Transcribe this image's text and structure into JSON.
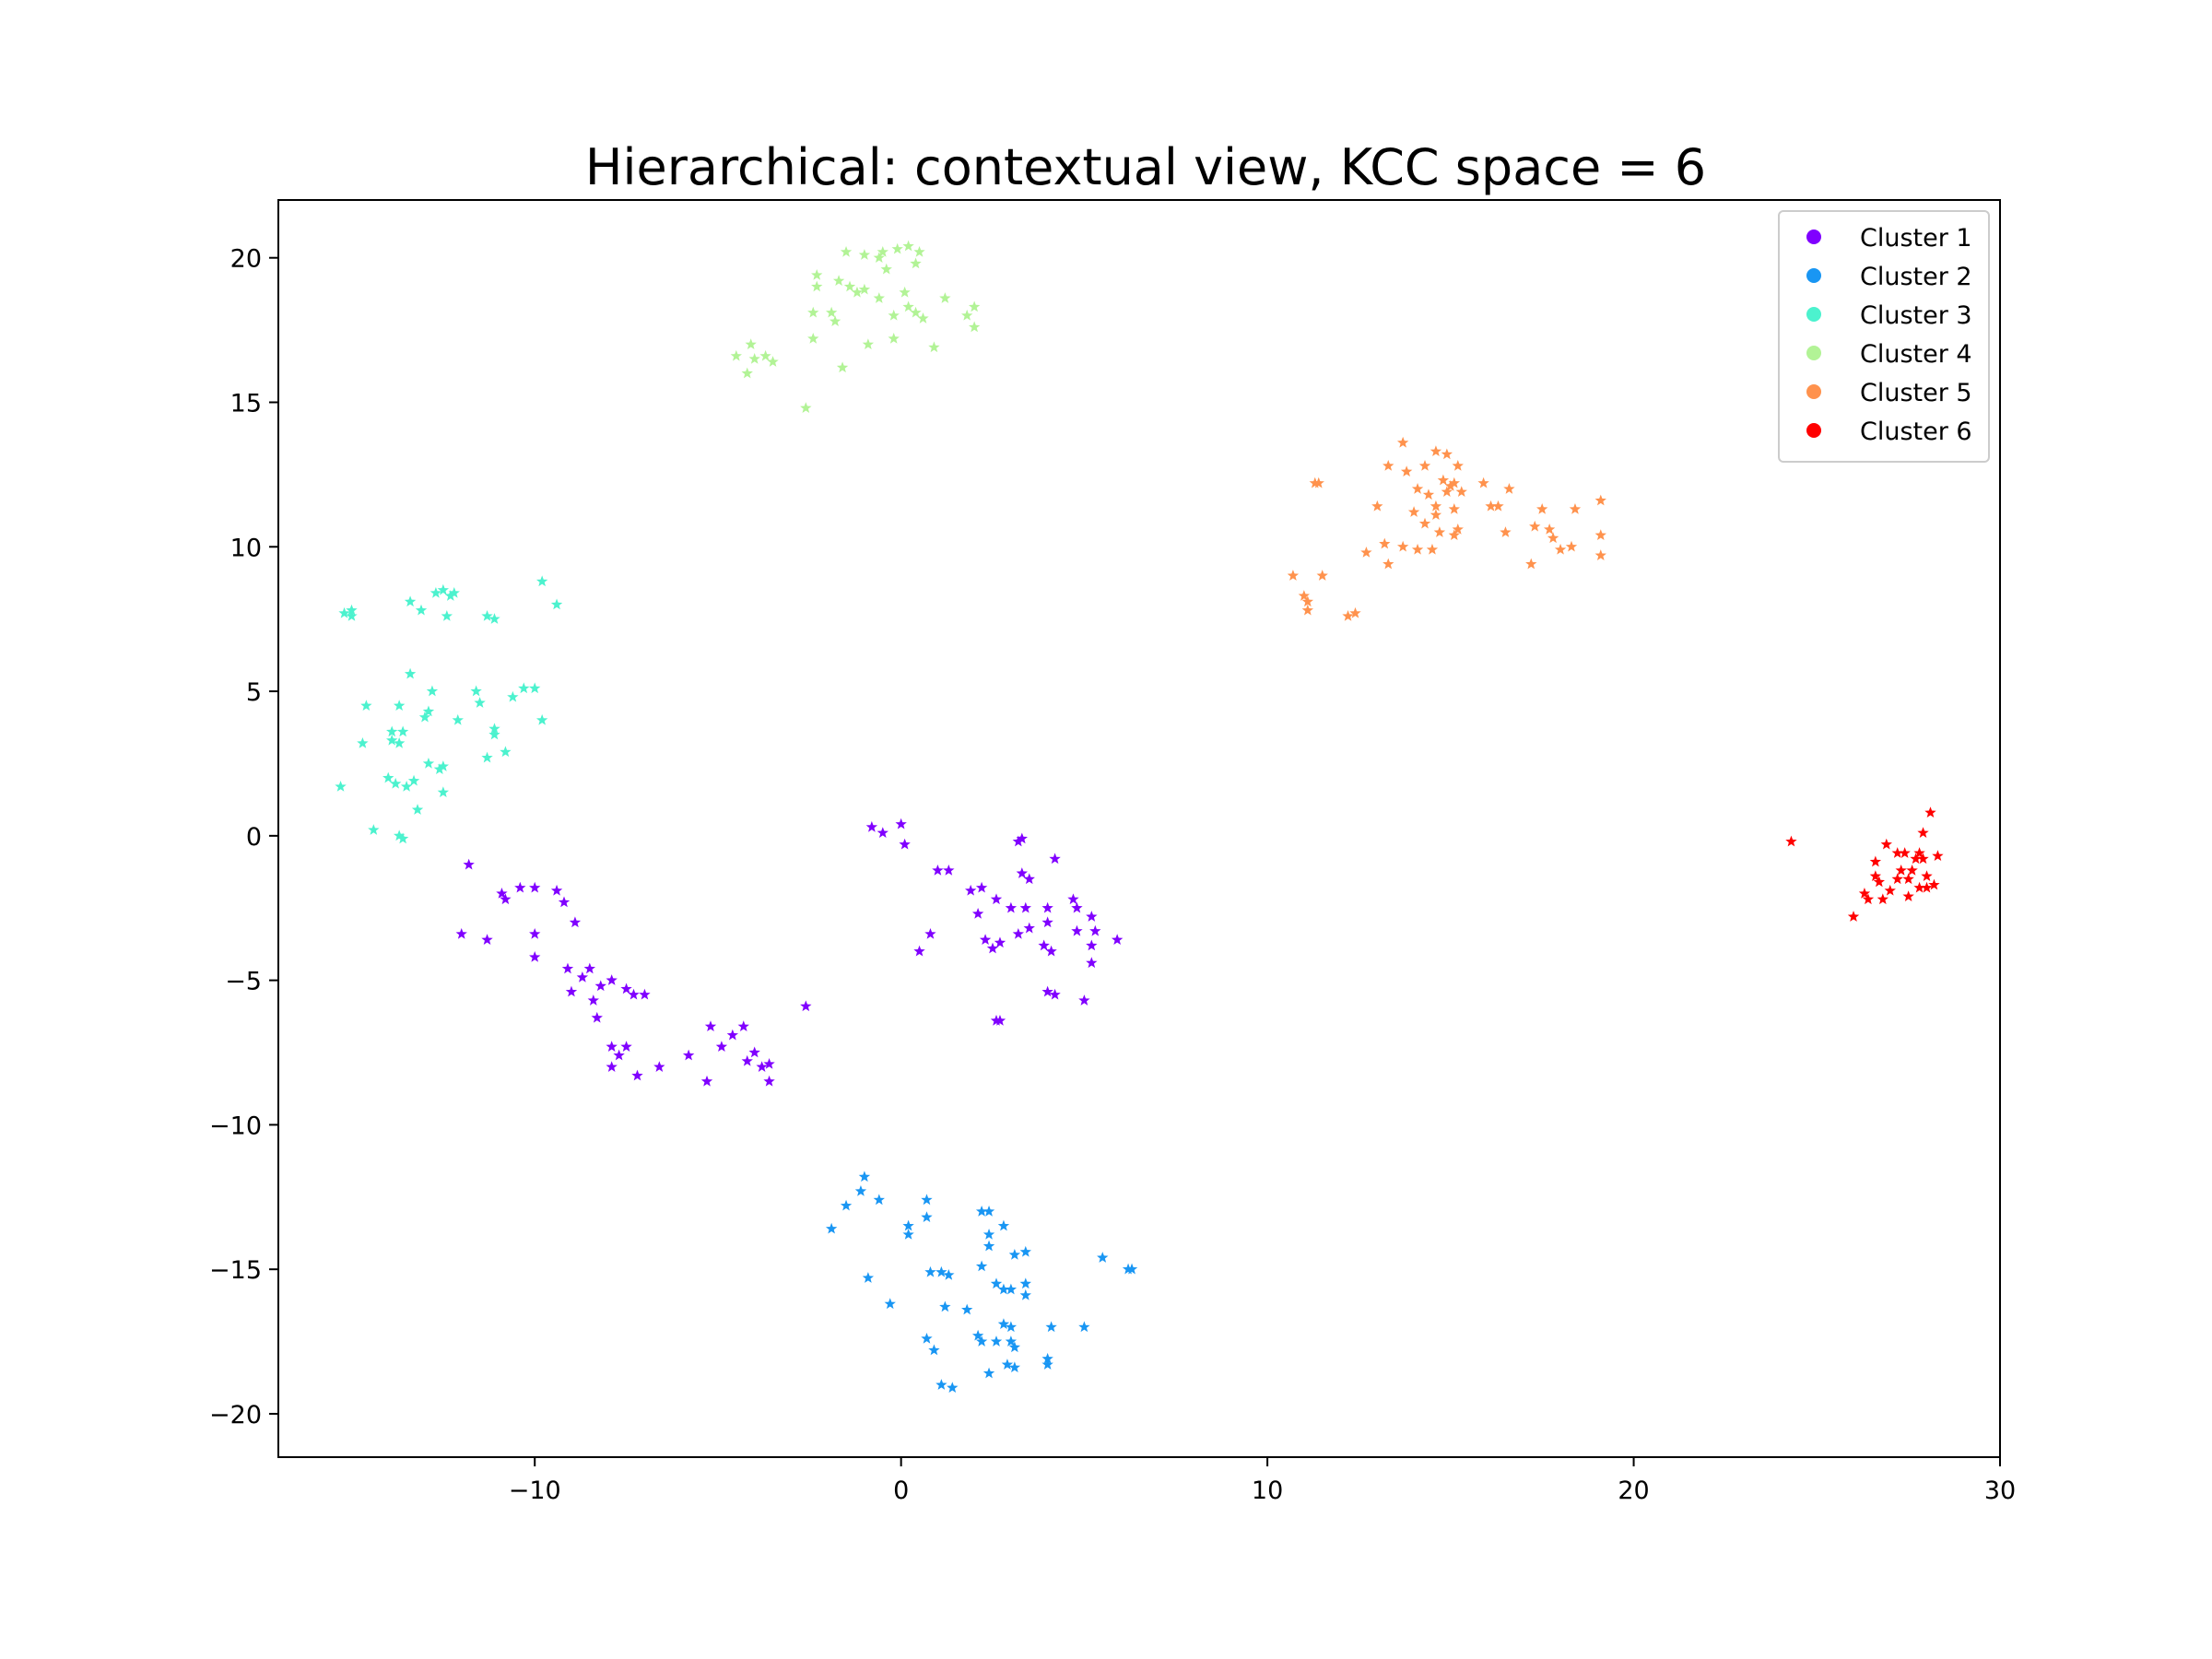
{
  "chart_data": {
    "type": "scatter",
    "title": "Hierarchical: contextual view, KCC space = 6",
    "xlabel": "",
    "ylabel": "",
    "xlim": [
      -17.0,
      30.0
    ],
    "ylim": [
      -21.5,
      22.0
    ],
    "xticks": [
      -10,
      0,
      10,
      20,
      30
    ],
    "yticks": [
      -20,
      -15,
      -10,
      -5,
      0,
      5,
      10,
      15,
      20
    ],
    "tick_labels": {
      "x": [
        "−10",
        "0",
        "10",
        "20",
        "30"
      ],
      "y": [
        "−20",
        "−15",
        "−10",
        "−5",
        "0",
        "5",
        "10",
        "15",
        "20"
      ]
    },
    "grid": false,
    "legend_position": "top-right",
    "marker": "star",
    "series": [
      {
        "name": "Cluster 1",
        "color": "#8000ff",
        "points": [
          [
            -11.8,
            -1.0
          ],
          [
            -10.9,
            -2.0
          ],
          [
            -10.8,
            -2.2
          ],
          [
            -10.4,
            -1.8
          ],
          [
            -10.0,
            -1.8
          ],
          [
            -9.4,
            -1.9
          ],
          [
            -9.2,
            -2.3
          ],
          [
            -8.9,
            -3.0
          ],
          [
            -12.0,
            -3.4
          ],
          [
            -11.3,
            -3.6
          ],
          [
            -10.0,
            -3.4
          ],
          [
            -10.0,
            -4.2
          ],
          [
            -9.1,
            -4.6
          ],
          [
            -8.5,
            -4.6
          ],
          [
            -8.7,
            -4.9
          ],
          [
            -8.2,
            -5.2
          ],
          [
            -8.4,
            -5.7
          ],
          [
            -7.9,
            -5.0
          ],
          [
            -7.5,
            -5.3
          ],
          [
            -7.3,
            -5.5
          ],
          [
            -7.0,
            -5.5
          ],
          [
            -9.0,
            -5.4
          ],
          [
            -8.3,
            -6.3
          ],
          [
            -7.9,
            -7.3
          ],
          [
            -7.7,
            -7.6
          ],
          [
            -7.5,
            -7.3
          ],
          [
            -7.2,
            -8.3
          ],
          [
            -6.6,
            -8.0
          ],
          [
            -7.9,
            -8.0
          ],
          [
            -5.8,
            -7.6
          ],
          [
            -5.3,
            -8.5
          ],
          [
            -5.2,
            -6.6
          ],
          [
            -4.9,
            -7.3
          ],
          [
            -4.6,
            -6.9
          ],
          [
            -4.3,
            -6.6
          ],
          [
            -4.2,
            -7.8
          ],
          [
            -4.0,
            -7.5
          ],
          [
            -3.8,
            -8.0
          ],
          [
            -3.6,
            -8.5
          ],
          [
            -3.6,
            -7.9
          ],
          [
            -2.6,
            -5.9
          ],
          [
            -0.8,
            0.3
          ],
          [
            -0.5,
            0.1
          ],
          [
            0.0,
            0.4
          ],
          [
            0.1,
            -0.3
          ],
          [
            1.0,
            -1.2
          ],
          [
            1.3,
            -1.2
          ],
          [
            1.9,
            -1.9
          ],
          [
            2.2,
            -1.8
          ],
          [
            2.1,
            -2.7
          ],
          [
            2.6,
            -2.2
          ],
          [
            3.2,
            -0.2
          ],
          [
            3.3,
            -0.1
          ],
          [
            3.3,
            -1.3
          ],
          [
            3.5,
            -1.5
          ],
          [
            3.0,
            -2.5
          ],
          [
            3.4,
            -2.5
          ],
          [
            4.2,
            -0.8
          ],
          [
            4.0,
            -2.5
          ],
          [
            3.5,
            -3.2
          ],
          [
            3.2,
            -3.4
          ],
          [
            4.0,
            -3.0
          ],
          [
            4.7,
            -2.2
          ],
          [
            4.8,
            -2.5
          ],
          [
            5.2,
            -2.8
          ],
          [
            4.8,
            -3.3
          ],
          [
            5.3,
            -3.3
          ],
          [
            5.9,
            -3.6
          ],
          [
            5.2,
            -3.8
          ],
          [
            5.2,
            -4.4
          ],
          [
            3.9,
            -3.8
          ],
          [
            4.1,
            -4.0
          ],
          [
            2.3,
            -3.6
          ],
          [
            2.5,
            -3.9
          ],
          [
            2.7,
            -3.7
          ],
          [
            0.8,
            -3.4
          ],
          [
            0.5,
            -4.0
          ],
          [
            4.0,
            -5.4
          ],
          [
            4.2,
            -5.5
          ],
          [
            5.0,
            -5.7
          ],
          [
            2.6,
            -6.4
          ],
          [
            2.7,
            -6.4
          ]
        ]
      },
      {
        "name": "Cluster 2",
        "color": "#1996f3",
        "points": [
          [
            -1.9,
            -13.6
          ],
          [
            -1.5,
            -12.8
          ],
          [
            -1.1,
            -12.3
          ],
          [
            -1.0,
            -11.8
          ],
          [
            -0.6,
            -12.6
          ],
          [
            -0.9,
            -15.3
          ],
          [
            -0.3,
            -16.2
          ],
          [
            0.2,
            -13.5
          ],
          [
            0.2,
            -13.8
          ],
          [
            0.7,
            -12.6
          ],
          [
            0.7,
            -13.2
          ],
          [
            0.8,
            -15.1
          ],
          [
            1.1,
            -15.1
          ],
          [
            1.3,
            -15.2
          ],
          [
            1.2,
            -16.3
          ],
          [
            0.7,
            -17.4
          ],
          [
            0.9,
            -17.8
          ],
          [
            1.1,
            -19.0
          ],
          [
            1.4,
            -19.1
          ],
          [
            1.8,
            -16.4
          ],
          [
            2.2,
            -14.9
          ],
          [
            2.1,
            -17.3
          ],
          [
            2.2,
            -17.5
          ],
          [
            2.2,
            -13.0
          ],
          [
            2.4,
            -13.0
          ],
          [
            2.4,
            -13.8
          ],
          [
            2.8,
            -13.5
          ],
          [
            2.4,
            -14.2
          ],
          [
            2.6,
            -15.5
          ],
          [
            2.8,
            -15.7
          ],
          [
            3.0,
            -15.7
          ],
          [
            3.1,
            -14.5
          ],
          [
            3.4,
            -14.4
          ],
          [
            3.4,
            -15.5
          ],
          [
            3.4,
            -15.9
          ],
          [
            2.8,
            -16.9
          ],
          [
            3.0,
            -17.0
          ],
          [
            2.6,
            -17.5
          ],
          [
            3.0,
            -17.5
          ],
          [
            3.1,
            -17.7
          ],
          [
            2.4,
            -18.6
          ],
          [
            2.9,
            -18.3
          ],
          [
            3.1,
            -18.4
          ],
          [
            4.1,
            -17.0
          ],
          [
            4.0,
            -18.1
          ],
          [
            4.0,
            -18.3
          ],
          [
            5.0,
            -17.0
          ],
          [
            5.5,
            -14.6
          ],
          [
            6.2,
            -15.0
          ],
          [
            6.3,
            -15.0
          ]
        ]
      },
      {
        "name": "Cluster 3",
        "color": "#4cf2ce",
        "points": [
          [
            -15.2,
            7.7
          ],
          [
            -15.0,
            7.8
          ],
          [
            -15.0,
            7.6
          ],
          [
            -13.4,
            8.1
          ],
          [
            -13.1,
            7.8
          ],
          [
            -12.7,
            8.4
          ],
          [
            -12.5,
            8.5
          ],
          [
            -12.3,
            8.3
          ],
          [
            -12.2,
            8.4
          ],
          [
            -12.4,
            7.6
          ],
          [
            -11.3,
            7.6
          ],
          [
            -11.1,
            7.5
          ],
          [
            -9.8,
            8.8
          ],
          [
            -9.4,
            8.0
          ],
          [
            -15.3,
            1.7
          ],
          [
            -14.7,
            3.2
          ],
          [
            -14.6,
            4.5
          ],
          [
            -14.4,
            0.2
          ],
          [
            -14.0,
            2.0
          ],
          [
            -13.8,
            1.8
          ],
          [
            -13.5,
            1.7
          ],
          [
            -13.7,
            0.0
          ],
          [
            -13.6,
            -0.1
          ],
          [
            -13.2,
            0.9
          ],
          [
            -13.3,
            1.9
          ],
          [
            -13.9,
            3.3
          ],
          [
            -13.9,
            3.6
          ],
          [
            -13.7,
            3.2
          ],
          [
            -13.6,
            3.6
          ],
          [
            -13.7,
            4.5
          ],
          [
            -13.4,
            5.6
          ],
          [
            -13.0,
            4.1
          ],
          [
            -12.9,
            4.3
          ],
          [
            -12.8,
            5.0
          ],
          [
            -12.9,
            2.5
          ],
          [
            -12.6,
            2.3
          ],
          [
            -12.5,
            2.4
          ],
          [
            -12.5,
            1.5
          ],
          [
            -12.1,
            4.0
          ],
          [
            -11.6,
            5.0
          ],
          [
            -11.5,
            4.6
          ],
          [
            -11.3,
            2.7
          ],
          [
            -11.1,
            3.5
          ],
          [
            -11.1,
            3.7
          ],
          [
            -10.8,
            2.9
          ],
          [
            -10.6,
            4.8
          ],
          [
            -10.3,
            5.1
          ],
          [
            -10.0,
            5.1
          ],
          [
            -9.8,
            4.0
          ]
        ]
      },
      {
        "name": "Cluster 4",
        "color": "#b2f396",
        "points": [
          [
            -4.5,
            16.6
          ],
          [
            -4.2,
            16.0
          ],
          [
            -4.1,
            17.0
          ],
          [
            -4.0,
            16.5
          ],
          [
            -3.7,
            16.6
          ],
          [
            -3.5,
            16.4
          ],
          [
            -2.6,
            14.8
          ],
          [
            -2.4,
            17.2
          ],
          [
            -2.4,
            18.1
          ],
          [
            -2.3,
            19.0
          ],
          [
            -2.3,
            19.4
          ],
          [
            -1.9,
            18.1
          ],
          [
            -1.8,
            17.8
          ],
          [
            -1.7,
            19.2
          ],
          [
            -1.6,
            16.2
          ],
          [
            -1.5,
            20.2
          ],
          [
            -1.4,
            19.0
          ],
          [
            -1.2,
            18.8
          ],
          [
            -1.0,
            18.9
          ],
          [
            -1.0,
            20.1
          ],
          [
            -0.9,
            17.0
          ],
          [
            -0.6,
            18.6
          ],
          [
            -0.6,
            20.0
          ],
          [
            -0.5,
            20.2
          ],
          [
            -0.4,
            19.6
          ],
          [
            -0.2,
            18.0
          ],
          [
            -0.2,
            17.2
          ],
          [
            -0.1,
            20.3
          ],
          [
            0.2,
            20.4
          ],
          [
            0.2,
            18.3
          ],
          [
            0.4,
            18.1
          ],
          [
            0.4,
            19.8
          ],
          [
            0.5,
            20.2
          ],
          [
            0.6,
            17.9
          ],
          [
            0.9,
            16.9
          ],
          [
            1.2,
            18.6
          ],
          [
            1.8,
            18.0
          ],
          [
            2.0,
            17.6
          ],
          [
            2.0,
            18.3
          ],
          [
            0.1,
            18.8
          ]
        ]
      },
      {
        "name": "Cluster 5",
        "color": "#ff924d",
        "points": [
          [
            10.7,
            9.0
          ],
          [
            11.0,
            8.3
          ],
          [
            11.1,
            8.1
          ],
          [
            11.1,
            7.8
          ],
          [
            11.3,
            12.2
          ],
          [
            11.4,
            12.2
          ],
          [
            11.5,
            9.0
          ],
          [
            12.2,
            7.6
          ],
          [
            12.4,
            7.7
          ],
          [
            12.7,
            9.8
          ],
          [
            13.0,
            11.4
          ],
          [
            13.2,
            10.1
          ],
          [
            13.3,
            9.4
          ],
          [
            13.3,
            12.8
          ],
          [
            13.7,
            13.6
          ],
          [
            13.8,
            12.6
          ],
          [
            14.0,
            11.2
          ],
          [
            14.1,
            9.9
          ],
          [
            14.1,
            12.0
          ],
          [
            14.3,
            10.8
          ],
          [
            14.3,
            12.8
          ],
          [
            14.4,
            11.8
          ],
          [
            14.6,
            11.4
          ],
          [
            14.6,
            11.1
          ],
          [
            14.7,
            10.5
          ],
          [
            14.8,
            12.3
          ],
          [
            14.9,
            11.9
          ],
          [
            15.0,
            12.1
          ],
          [
            15.1,
            12.2
          ],
          [
            15.1,
            11.3
          ],
          [
            15.1,
            10.4
          ],
          [
            15.2,
            10.6
          ],
          [
            15.2,
            12.8
          ],
          [
            15.3,
            11.9
          ],
          [
            14.9,
            13.2
          ],
          [
            14.6,
            13.3
          ],
          [
            13.7,
            10.0
          ],
          [
            14.5,
            9.9
          ],
          [
            15.9,
            12.2
          ],
          [
            16.1,
            11.4
          ],
          [
            16.3,
            11.4
          ],
          [
            16.6,
            12.0
          ],
          [
            16.5,
            10.5
          ],
          [
            17.2,
            9.4
          ],
          [
            17.3,
            10.7
          ],
          [
            17.5,
            11.3
          ],
          [
            17.8,
            10.3
          ],
          [
            18.0,
            9.9
          ],
          [
            18.3,
            10.0
          ],
          [
            18.4,
            11.3
          ],
          [
            19.1,
            11.6
          ],
          [
            19.1,
            10.4
          ],
          [
            19.1,
            9.7
          ],
          [
            17.7,
            10.6
          ]
        ]
      },
      {
        "name": "Cluster 6",
        "color": "#ff0000",
        "points": [
          [
            24.3,
            -0.2
          ],
          [
            26.0,
            -2.8
          ],
          [
            26.4,
            -2.2
          ],
          [
            26.6,
            -0.9
          ],
          [
            26.6,
            -1.4
          ],
          [
            26.7,
            -1.6
          ],
          [
            26.8,
            -2.2
          ],
          [
            26.9,
            -0.3
          ],
          [
            27.0,
            -1.9
          ],
          [
            27.2,
            -0.6
          ],
          [
            27.3,
            -1.2
          ],
          [
            27.4,
            -0.6
          ],
          [
            27.5,
            -1.5
          ],
          [
            27.5,
            -2.1
          ],
          [
            27.6,
            -1.2
          ],
          [
            27.7,
            -0.8
          ],
          [
            27.8,
            -1.8
          ],
          [
            27.9,
            -0.8
          ],
          [
            27.9,
            0.1
          ],
          [
            28.0,
            -1.4
          ],
          [
            28.0,
            -1.8
          ],
          [
            28.1,
            0.8
          ],
          [
            28.2,
            -1.7
          ],
          [
            28.3,
            -0.7
          ],
          [
            27.2,
            -1.5
          ],
          [
            26.3,
            -2.0
          ],
          [
            27.8,
            -0.6
          ]
        ]
      }
    ]
  }
}
